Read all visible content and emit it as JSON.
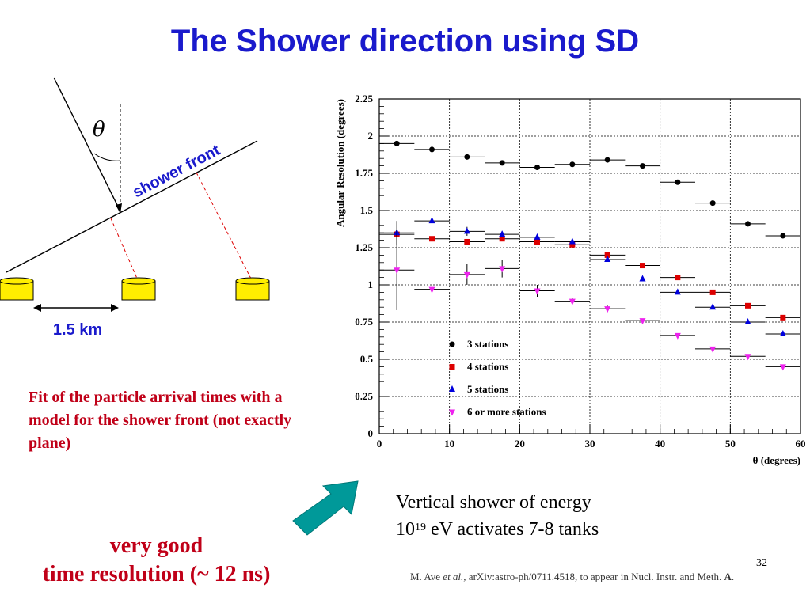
{
  "slide": {
    "title": "The Shower direction using SD",
    "page_number": "32",
    "fit_text": "Fit of the particle arrival times with a model for the shower front (not exactly plane)",
    "very_good": "very good",
    "time_resolution": "time resolution (~ 12 ns)",
    "vertical_line1": "Vertical shower of energy",
    "vertical_base": "10",
    "vertical_exp": "19",
    "vertical_rest": " eV activates 7-8 tanks",
    "citation_author": "M. Ave ",
    "citation_etal": "et al.",
    "citation_mid": ", arXiv:astro-ph/0711.4518, to appear in Nucl. Instr. and Meth. ",
    "citation_end": "A",
    "citation_dot": "."
  },
  "diagram": {
    "theta_symbol": "θ",
    "shower_front_label": "shower front",
    "distance_label": "1.5 km",
    "tank_color": "#ffee00",
    "colors": {
      "dashed": "#dd0000",
      "label": "#1a1acc"
    }
  },
  "arrow": {
    "color": "#009999"
  },
  "chart_data": {
    "type": "scatter",
    "xlabel": "θ (degrees)",
    "ylabel": "Angular Resolution (degrees)",
    "xlim": [
      0,
      60
    ],
    "ylim": [
      0,
      2.25
    ],
    "xticks": [
      0,
      10,
      20,
      30,
      40,
      50,
      60
    ],
    "yticks": [
      0,
      0.25,
      0.5,
      0.75,
      1,
      1.25,
      1.5,
      1.75,
      2,
      2.25
    ],
    "ytick_labels": [
      "0",
      "0.25",
      "0.5",
      "0.75",
      "1",
      "1.25",
      "1.5",
      "1.75",
      "2",
      "2.25"
    ],
    "grid": true,
    "legend_position": "bottom-left",
    "series": [
      {
        "name": "3 stations",
        "marker": "circle",
        "color": "#000000",
        "x": [
          2.5,
          7.5,
          12.5,
          17.5,
          22.5,
          27.5,
          32.5,
          37.5,
          42.5,
          47.5,
          52.5,
          57.5
        ],
        "y": [
          1.95,
          1.91,
          1.86,
          1.82,
          1.79,
          1.81,
          1.84,
          1.8,
          1.69,
          1.55,
          1.41,
          1.33
        ]
      },
      {
        "name": "4 stations",
        "marker": "square",
        "color": "#dd0000",
        "x": [
          2.5,
          7.5,
          12.5,
          17.5,
          22.5,
          27.5,
          32.5,
          37.5,
          42.5,
          47.5,
          52.5,
          57.5
        ],
        "y": [
          1.34,
          1.31,
          1.29,
          1.31,
          1.29,
          1.27,
          1.2,
          1.13,
          1.05,
          0.95,
          0.86,
          0.78
        ]
      },
      {
        "name": "5 stations",
        "marker": "triangle-up",
        "color": "#0000dd",
        "x": [
          2.5,
          7.5,
          12.5,
          17.5,
          22.5,
          27.5,
          32.5,
          37.5,
          42.5,
          47.5,
          52.5,
          57.5
        ],
        "y": [
          1.35,
          1.43,
          1.36,
          1.34,
          1.32,
          1.29,
          1.17,
          1.04,
          0.95,
          0.85,
          0.75,
          0.67
        ],
        "y_err": [
          0.08,
          0.05,
          0.03,
          0.02,
          0.01,
          0.01,
          0.01,
          0.01,
          0.01,
          0.01,
          0.01,
          0.01
        ]
      },
      {
        "name": "6 or more stations",
        "marker": "triangle-down",
        "color": "#ee22ee",
        "x": [
          2.5,
          7.5,
          12.5,
          17.5,
          22.5,
          27.5,
          32.5,
          37.5,
          42.5,
          47.5,
          52.5,
          57.5
        ],
        "y": [
          1.1,
          0.97,
          1.07,
          1.11,
          0.96,
          0.89,
          0.84,
          0.76,
          0.66,
          0.57,
          0.52,
          0.45
        ],
        "y_err": [
          0.27,
          0.08,
          0.07,
          0.06,
          0.04,
          0.02,
          0.02,
          0.01,
          0.01,
          0.01,
          0.01,
          0.01
        ]
      }
    ]
  }
}
